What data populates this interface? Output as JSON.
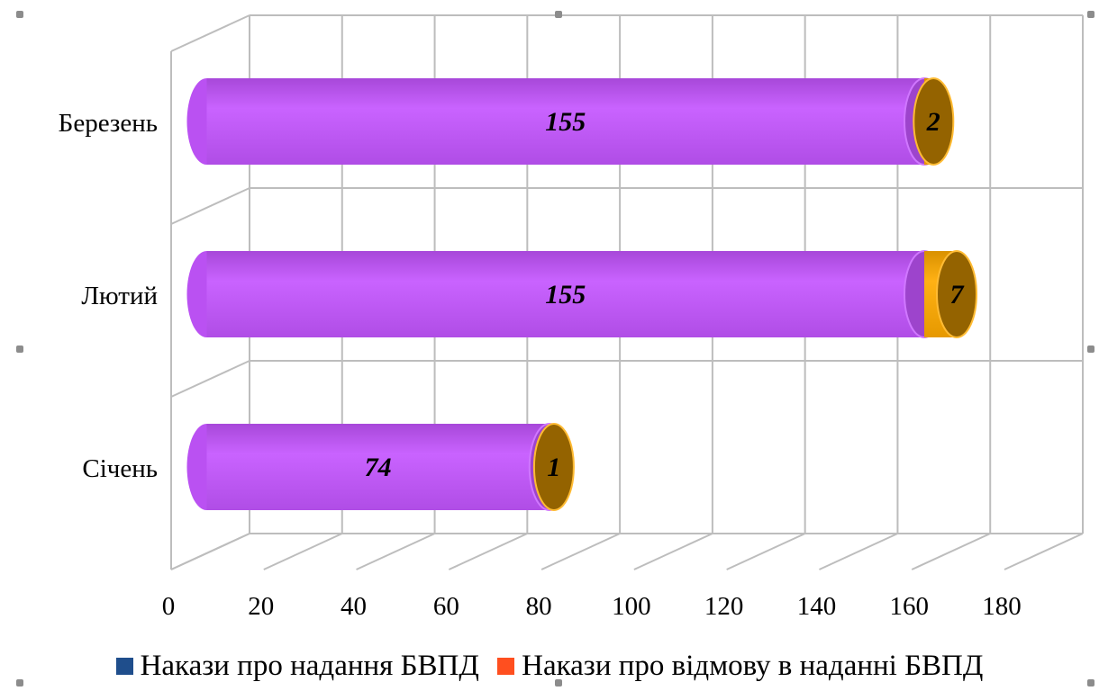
{
  "chart_data": {
    "type": "bar",
    "orientation": "horizontal",
    "stacked": true,
    "three_d": true,
    "bar_shape": "cylinder",
    "categories": [
      "Березень",
      "Лютий",
      "Січень"
    ],
    "series": [
      {
        "name": "Накази про надання БВПД",
        "values": [
          155,
          155,
          74
        ],
        "legend_color": "#1f4e8c",
        "bar_color": "#c455ff"
      },
      {
        "name": "Накази про відмову в наданні БВПД",
        "values": [
          2,
          7,
          1
        ],
        "legend_color": "#ff4f1f",
        "bar_color": "#ffaa00"
      }
    ],
    "xlim": [
      0,
      180
    ],
    "x_ticks": [
      "0",
      "20",
      "40",
      "60",
      "80",
      "100",
      "120",
      "140",
      "160",
      "180"
    ],
    "grid": true,
    "legend_position": "bottom"
  }
}
